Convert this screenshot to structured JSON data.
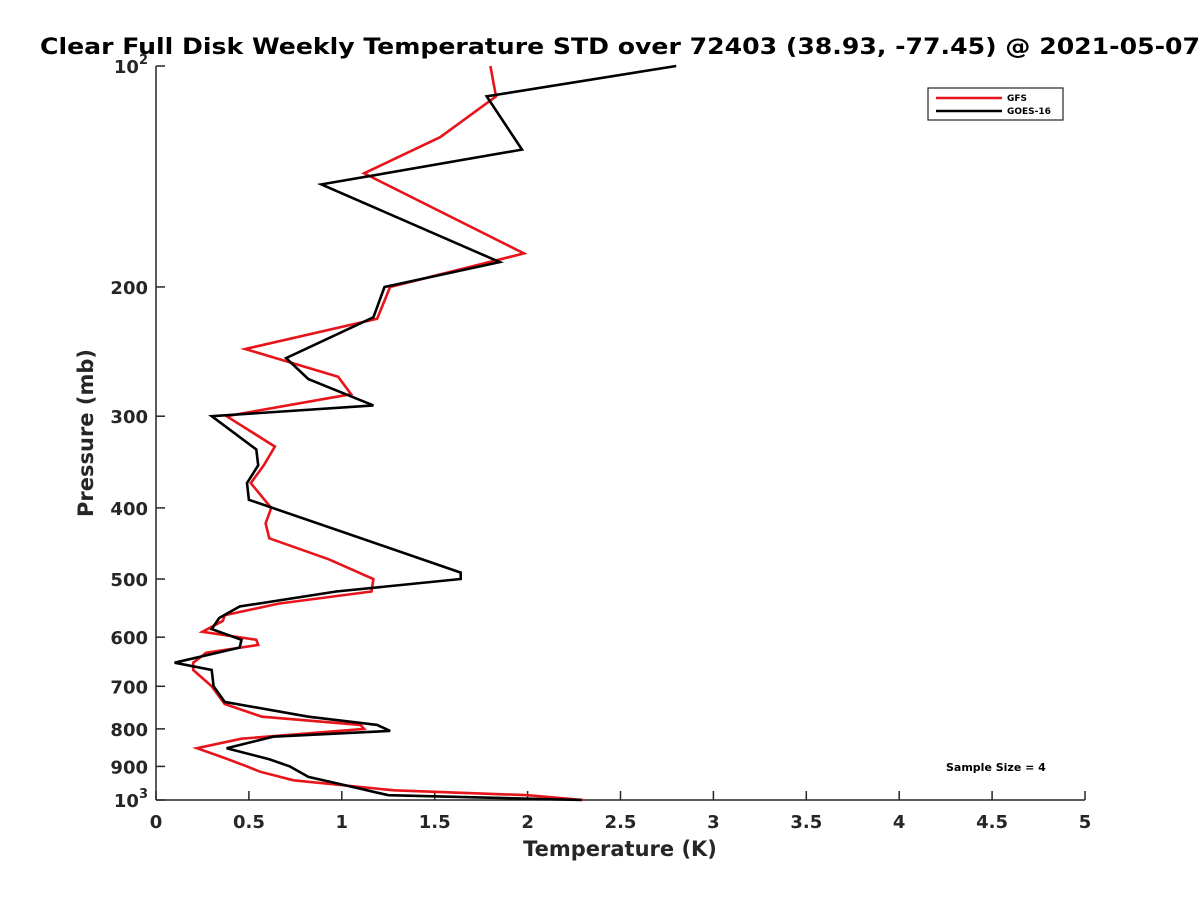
{
  "chart_data": {
    "type": "line",
    "title": "Clear Full Disk Weekly Temperature STD over 72403 (38.93, -77.45) @ 2021-05-07",
    "xlabel": "Temperature (K)",
    "ylabel": "Pressure (mb)",
    "xlim": [
      0,
      5
    ],
    "ylim": [
      100,
      1000
    ],
    "y_scale": "log",
    "y_reversed": true,
    "grid": false,
    "legend_position": "top-right",
    "x_ticks": [
      0,
      0.5,
      1,
      1.5,
      2,
      2.5,
      3,
      3.5,
      4,
      4.5,
      5
    ],
    "x_tick_labels": [
      "0",
      "0.5",
      "1",
      "1.5",
      "2",
      "2.5",
      "3",
      "3.5",
      "4",
      "4.5",
      "5"
    ],
    "y_ticks": [
      100,
      200,
      300,
      400,
      500,
      600,
      700,
      800,
      900,
      1000
    ],
    "y_tick_labels": [
      {
        "base": "10",
        "exp": "2"
      },
      {
        "base": "200",
        "exp": ""
      },
      {
        "base": "300",
        "exp": ""
      },
      {
        "base": "400",
        "exp": ""
      },
      {
        "base": "500",
        "exp": ""
      },
      {
        "base": "600",
        "exp": ""
      },
      {
        "base": "700",
        "exp": ""
      },
      {
        "base": "800",
        "exp": ""
      },
      {
        "base": "900",
        "exp": ""
      },
      {
        "base": "10",
        "exp": "3"
      }
    ],
    "annotation": "Sample Size = 4",
    "series": [
      {
        "name": "GFS",
        "color": "#e8141b",
        "points": [
          [
            1.8,
            100
          ],
          [
            1.83,
            110
          ],
          [
            1.53,
            125
          ],
          [
            1.12,
            140
          ],
          [
            1.98,
            180
          ],
          [
            1.26,
            200
          ],
          [
            1.19,
            221
          ],
          [
            0.48,
            243
          ],
          [
            0.98,
            265
          ],
          [
            1.05,
            280
          ],
          [
            0.38,
            300
          ],
          [
            0.64,
            330
          ],
          [
            0.58,
            350
          ],
          [
            0.51,
            370
          ],
          [
            0.62,
            400
          ],
          [
            0.59,
            420
          ],
          [
            0.61,
            440
          ],
          [
            0.93,
            470
          ],
          [
            1.17,
            500
          ],
          [
            1.16,
            520
          ],
          [
            0.66,
            540
          ],
          [
            0.37,
            560
          ],
          [
            0.36,
            570
          ],
          [
            0.25,
            590
          ],
          [
            0.54,
            605
          ],
          [
            0.55,
            615
          ],
          [
            0.27,
            630
          ],
          [
            0.2,
            650
          ],
          [
            0.2,
            665
          ],
          [
            0.3,
            700
          ],
          [
            0.37,
            740
          ],
          [
            0.57,
            770
          ],
          [
            1.1,
            790
          ],
          [
            1.12,
            800
          ],
          [
            0.46,
            825
          ],
          [
            0.22,
            850
          ],
          [
            0.36,
            875
          ],
          [
            0.49,
            900
          ],
          [
            0.56,
            915
          ],
          [
            0.74,
            940
          ],
          [
            1.28,
            970
          ],
          [
            2.0,
            985
          ],
          [
            2.3,
            1000
          ]
        ]
      },
      {
        "name": "GOES-16",
        "color": "#000000",
        "points": [
          [
            2.8,
            100
          ],
          [
            1.78,
            110
          ],
          [
            1.97,
            130
          ],
          [
            0.89,
            145
          ],
          [
            1.85,
            185
          ],
          [
            1.23,
            200
          ],
          [
            1.17,
            220
          ],
          [
            0.7,
            250
          ],
          [
            0.82,
            267
          ],
          [
            1.17,
            290
          ],
          [
            0.3,
            300
          ],
          [
            0.54,
            333
          ],
          [
            0.55,
            350
          ],
          [
            0.49,
            370
          ],
          [
            0.5,
            390
          ],
          [
            0.99,
            430
          ],
          [
            1.64,
            490
          ],
          [
            1.64,
            500
          ],
          [
            0.97,
            520
          ],
          [
            0.45,
            545
          ],
          [
            0.34,
            565
          ],
          [
            0.3,
            585
          ],
          [
            0.46,
            605
          ],
          [
            0.45,
            620
          ],
          [
            0.1,
            650
          ],
          [
            0.3,
            665
          ],
          [
            0.31,
            700
          ],
          [
            0.37,
            735
          ],
          [
            0.82,
            770
          ],
          [
            1.19,
            790
          ],
          [
            1.26,
            805
          ],
          [
            0.63,
            820
          ],
          [
            0.38,
            850
          ],
          [
            0.61,
            880
          ],
          [
            0.72,
            900
          ],
          [
            0.82,
            930
          ],
          [
            0.98,
            950
          ],
          [
            1.25,
            985
          ],
          [
            2.29,
            1000
          ]
        ]
      }
    ]
  }
}
